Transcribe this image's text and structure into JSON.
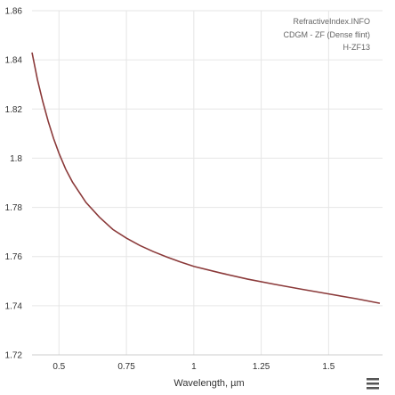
{
  "chart_data": {
    "type": "line",
    "xlabel": "Wavelength, µm",
    "ylabel": "",
    "xlim": [
      0.4,
      1.7
    ],
    "ylim": [
      1.72,
      1.86
    ],
    "xticks": [
      0.5,
      0.75,
      1,
      1.25,
      1.5
    ],
    "xtick_labels": [
      "0.5",
      "0.75",
      "1",
      "1.25",
      "1.5"
    ],
    "yticks": [
      1.72,
      1.74,
      1.76,
      1.78,
      1.8,
      1.82,
      1.84,
      1.86
    ],
    "ytick_labels": [
      "1.72",
      "1.74",
      "1.76",
      "1.78",
      "1.8",
      "1.82",
      "1.84",
      "1.86"
    ],
    "grid": true,
    "series": [
      {
        "color": "#8b3a3a",
        "points": [
          [
            0.4,
            1.843
          ],
          [
            0.42,
            1.832
          ],
          [
            0.44,
            1.823
          ],
          [
            0.46,
            1.815
          ],
          [
            0.48,
            1.808
          ],
          [
            0.5,
            1.802
          ],
          [
            0.525,
            1.7955
          ],
          [
            0.55,
            1.7903
          ],
          [
            0.6,
            1.782
          ],
          [
            0.65,
            1.776
          ],
          [
            0.7,
            1.771
          ],
          [
            0.75,
            1.7675
          ],
          [
            0.8,
            1.7645
          ],
          [
            0.85,
            1.762
          ],
          [
            0.9,
            1.7598
          ],
          [
            0.95,
            1.7578
          ],
          [
            1.0,
            1.756
          ],
          [
            1.1,
            1.7533
          ],
          [
            1.2,
            1.7508
          ],
          [
            1.3,
            1.7487
          ],
          [
            1.4,
            1.7467
          ],
          [
            1.5,
            1.7448
          ],
          [
            1.6,
            1.7429
          ],
          [
            1.69,
            1.741
          ]
        ]
      }
    ],
    "annotations": [
      "RefractiveIndex.INFO",
      "CDGM - ZF (Dense flint)",
      "H-ZF13"
    ]
  },
  "menu_icon": "hamburger-menu-icon"
}
